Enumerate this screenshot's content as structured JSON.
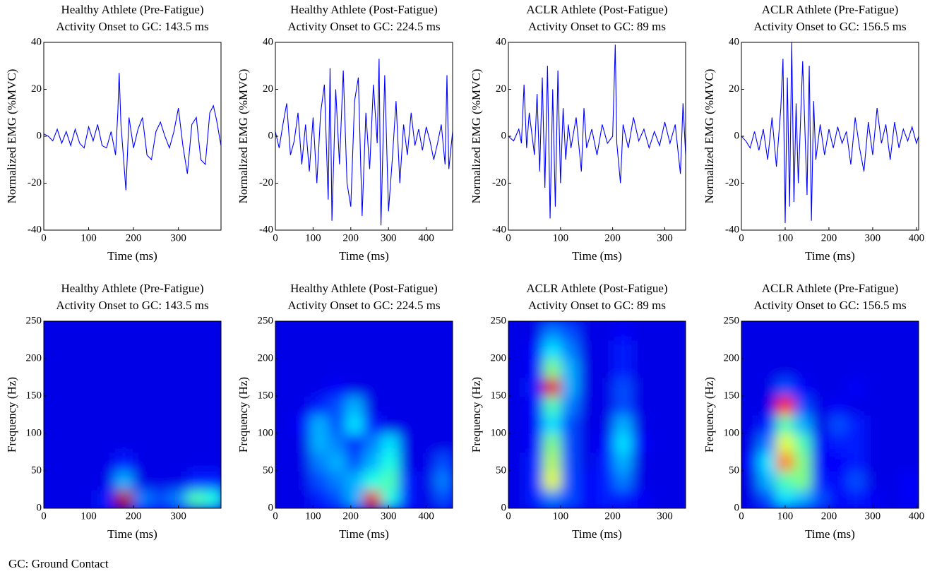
{
  "chart_data": [
    {
      "type": "line",
      "title": "Healthy Athlete (Pre-Fatigue)",
      "subtitle": "Activity Onset to GC: 143.5 ms",
      "xlabel": "Time (ms)",
      "ylabel": "Normalized EMG (%MVC)",
      "xlim": [
        0,
        395
      ],
      "xticks": [
        0,
        100,
        200,
        300
      ],
      "ylim": [
        -40,
        40
      ],
      "yticks": [
        -40,
        -20,
        0,
        20,
        40
      ],
      "color": "#0000ff",
      "x": [
        0,
        10,
        20,
        30,
        40,
        50,
        60,
        70,
        80,
        90,
        100,
        110,
        120,
        130,
        140,
        150,
        160,
        165,
        168,
        172,
        178,
        183,
        190,
        200,
        210,
        220,
        230,
        240,
        250,
        260,
        270,
        280,
        290,
        300,
        310,
        320,
        330,
        340,
        350,
        360,
        370,
        378,
        385,
        395
      ],
      "values": [
        1,
        0,
        -2,
        3,
        -3,
        2,
        -4,
        3,
        -3,
        -5,
        4,
        -2,
        5,
        -4,
        -5,
        2,
        -8,
        10,
        27,
        5,
        -10,
        -23,
        8,
        -5,
        3,
        8,
        -8,
        -10,
        2,
        6,
        0,
        -5,
        2,
        12,
        -4,
        -16,
        5,
        8,
        -10,
        -12,
        10,
        13,
        7,
        -4
      ]
    },
    {
      "type": "line",
      "title": "Healthy Athlete (Post-Fatigue)",
      "subtitle": "Activity Onset to GC: 224.5 ms",
      "xlabel": "Time (ms)",
      "ylabel": "Normalized EMG (%MVC)",
      "xlim": [
        0,
        470
      ],
      "xticks": [
        0,
        100,
        200,
        300,
        400
      ],
      "ylim": [
        -40,
        40
      ],
      "yticks": [
        -40,
        -20,
        0,
        20,
        40
      ],
      "color": "#0000ff",
      "x": [
        0,
        10,
        20,
        30,
        40,
        50,
        60,
        70,
        80,
        90,
        100,
        110,
        120,
        130,
        140,
        145,
        150,
        160,
        170,
        180,
        190,
        200,
        210,
        220,
        230,
        240,
        250,
        260,
        270,
        275,
        280,
        290,
        300,
        310,
        320,
        330,
        340,
        350,
        360,
        370,
        380,
        390,
        400,
        410,
        420,
        430,
        440,
        450,
        455,
        460,
        470
      ],
      "values": [
        2,
        -5,
        5,
        14,
        -8,
        -2,
        10,
        -12,
        5,
        -15,
        8,
        -20,
        10,
        22,
        -27,
        29,
        -36,
        20,
        -12,
        28,
        -20,
        -30,
        15,
        25,
        -34,
        10,
        -14,
        22,
        -3,
        33,
        -38,
        26,
        -32,
        -10,
        15,
        -20,
        5,
        -8,
        10,
        -4,
        3,
        -6,
        4,
        -2,
        -10,
        -3,
        5,
        -12,
        26,
        -14,
        2
      ]
    },
    {
      "type": "line",
      "title": "ACLR Athlete (Post-Fatigue)",
      "subtitle": "Activity Onset to GC: 89 ms",
      "xlabel": "Time (ms)",
      "ylabel": "Normalized EMG (%MVC)",
      "xlim": [
        0,
        340
      ],
      "xticks": [
        0,
        100,
        200,
        300
      ],
      "ylim": [
        -40,
        40
      ],
      "yticks": [
        -40,
        -20,
        0,
        20,
        40
      ],
      "color": "#0000ff",
      "x": [
        0,
        10,
        20,
        25,
        30,
        35,
        40,
        50,
        55,
        60,
        65,
        70,
        75,
        80,
        85,
        90,
        95,
        100,
        105,
        110,
        115,
        120,
        130,
        140,
        145,
        150,
        160,
        170,
        180,
        190,
        200,
        205,
        208,
        215,
        220,
        230,
        240,
        250,
        260,
        270,
        280,
        290,
        300,
        310,
        320,
        330,
        335,
        340
      ],
      "values": [
        0,
        -2,
        3,
        -3,
        22,
        -5,
        10,
        -8,
        18,
        -15,
        25,
        -22,
        30,
        -35,
        20,
        -30,
        28,
        -20,
        12,
        -10,
        5,
        -5,
        8,
        -15,
        12,
        -5,
        3,
        -8,
        5,
        -3,
        0,
        39,
        -3,
        -20,
        5,
        -5,
        8,
        -2,
        3,
        -5,
        2,
        -4,
        6,
        -3,
        5,
        -16,
        14,
        -8
      ]
    },
    {
      "type": "line",
      "title": "ACLR Athlete (Pre-Fatigue)",
      "subtitle": "Activity Onset to GC: 156.5 ms",
      "xlabel": "Time (ms)",
      "ylabel": "Normalized EMG (%MVC)",
      "xlim": [
        0,
        405
      ],
      "xticks": [
        0,
        100,
        200,
        300,
        400
      ],
      "ylim": [
        -40,
        40
      ],
      "yticks": [
        -40,
        -20,
        0,
        20,
        40
      ],
      "color": "#0000ff",
      "x": [
        0,
        10,
        20,
        30,
        40,
        50,
        60,
        70,
        80,
        90,
        95,
        100,
        105,
        110,
        115,
        120,
        125,
        130,
        140,
        150,
        155,
        160,
        165,
        170,
        180,
        190,
        200,
        210,
        220,
        230,
        240,
        250,
        260,
        270,
        280,
        290,
        300,
        310,
        320,
        330,
        340,
        350,
        360,
        370,
        380,
        390,
        400,
        405
      ],
      "values": [
        0,
        -2,
        -5,
        2,
        -6,
        3,
        -10,
        8,
        -13,
        12,
        33,
        -37,
        25,
        -30,
        40,
        -28,
        14,
        -20,
        32,
        -25,
        30,
        -36,
        15,
        -10,
        5,
        -8,
        3,
        -5,
        4,
        -3,
        2,
        -12,
        8,
        -5,
        -15,
        6,
        -8,
        12,
        -3,
        5,
        -10,
        6,
        -5,
        3,
        -2,
        4,
        -3,
        0
      ]
    },
    {
      "type": "heatmap",
      "title": "Healthy Athlete (Pre-Fatigue)",
      "subtitle": "Activity Onset to GC: 143.5 ms",
      "xlabel": "Time (ms)",
      "ylabel": "Frequency (Hz)",
      "colormap": "jet",
      "xlim": [
        0,
        395
      ],
      "xticks": [
        0,
        100,
        200,
        300
      ],
      "ylim": [
        0,
        250
      ],
      "yticks": [
        0,
        50,
        100,
        150,
        200,
        250
      ],
      "x": [
        20,
        60,
        100,
        140,
        180,
        220,
        260,
        300,
        340,
        380
      ],
      "y": [
        12.5,
        37.5,
        62.5,
        87.5,
        112.5,
        137.5,
        162.5,
        187.5,
        212.5,
        237.5
      ],
      "z": [
        [
          0.1,
          0.1,
          0.1,
          0.15,
          0.95,
          0.25,
          0.2,
          0.25,
          0.45,
          0.4
        ],
        [
          0.1,
          0.1,
          0.1,
          0.1,
          0.3,
          0.1,
          0.1,
          0.1,
          0.15,
          0.15
        ],
        [
          0.1,
          0.1,
          0.1,
          0.1,
          0.15,
          0.1,
          0.1,
          0.1,
          0.1,
          0.1
        ],
        [
          0.1,
          0.1,
          0.1,
          0.1,
          0.1,
          0.1,
          0.1,
          0.1,
          0.1,
          0.1
        ],
        [
          0.1,
          0.1,
          0.1,
          0.1,
          0.1,
          0.1,
          0.1,
          0.1,
          0.1,
          0.1
        ],
        [
          0.1,
          0.1,
          0.1,
          0.1,
          0.1,
          0.1,
          0.1,
          0.1,
          0.1,
          0.1
        ],
        [
          0.1,
          0.1,
          0.1,
          0.1,
          0.1,
          0.1,
          0.1,
          0.1,
          0.1,
          0.1
        ],
        [
          0.1,
          0.1,
          0.1,
          0.1,
          0.1,
          0.1,
          0.1,
          0.1,
          0.1,
          0.1
        ],
        [
          0.1,
          0.1,
          0.1,
          0.1,
          0.1,
          0.1,
          0.1,
          0.1,
          0.1,
          0.1
        ],
        [
          0.1,
          0.1,
          0.1,
          0.1,
          0.1,
          0.1,
          0.1,
          0.1,
          0.1,
          0.1
        ]
      ]
    },
    {
      "type": "heatmap",
      "title": "Healthy Athlete (Post-Fatigue)",
      "subtitle": "Activity Onset to GC: 224.5 ms",
      "xlabel": "Time (ms)",
      "ylabel": "Frequency (Hz)",
      "colormap": "jet",
      "xlim": [
        0,
        470
      ],
      "xticks": [
        0,
        100,
        200,
        300,
        400
      ],
      "ylim": [
        0,
        250
      ],
      "yticks": [
        0,
        50,
        100,
        150,
        200,
        250
      ],
      "x": [
        24,
        71,
        118,
        165,
        212,
        259,
        306,
        353,
        400,
        447
      ],
      "y": [
        12.5,
        37.5,
        62.5,
        87.5,
        112.5,
        137.5,
        162.5,
        187.5,
        212.5,
        237.5
      ],
      "z": [
        [
          0.1,
          0.1,
          0.15,
          0.2,
          0.3,
          0.9,
          0.4,
          0.15,
          0.1,
          0.2
        ],
        [
          0.1,
          0.1,
          0.2,
          0.25,
          0.3,
          0.4,
          0.45,
          0.15,
          0.1,
          0.25
        ],
        [
          0.1,
          0.1,
          0.25,
          0.3,
          0.2,
          0.3,
          0.4,
          0.1,
          0.1,
          0.2
        ],
        [
          0.1,
          0.1,
          0.3,
          0.25,
          0.15,
          0.25,
          0.35,
          0.1,
          0.1,
          0.1
        ],
        [
          0.1,
          0.12,
          0.3,
          0.2,
          0.35,
          0.15,
          0.1,
          0.1,
          0.1,
          0.1
        ],
        [
          0.1,
          0.1,
          0.15,
          0.2,
          0.3,
          0.1,
          0.1,
          0.1,
          0.1,
          0.1
        ],
        [
          0.1,
          0.1,
          0.1,
          0.12,
          0.1,
          0.1,
          0.1,
          0.1,
          0.1,
          0.1
        ],
        [
          0.1,
          0.1,
          0.1,
          0.1,
          0.1,
          0.1,
          0.1,
          0.1,
          0.1,
          0.1
        ],
        [
          0.1,
          0.1,
          0.1,
          0.1,
          0.1,
          0.1,
          0.1,
          0.1,
          0.1,
          0.1
        ],
        [
          0.1,
          0.1,
          0.1,
          0.1,
          0.1,
          0.1,
          0.1,
          0.1,
          0.1,
          0.1
        ]
      ]
    },
    {
      "type": "heatmap",
      "title": "ACLR Athlete (Post-Fatigue)",
      "subtitle": "Activity Onset to GC: 89 ms",
      "xlabel": "Time (ms)",
      "ylabel": "Frequency (Hz)",
      "colormap": "jet",
      "xlim": [
        0,
        340
      ],
      "xticks": [
        0,
        100,
        200,
        300
      ],
      "ylim": [
        0,
        250
      ],
      "yticks": [
        0,
        50,
        100,
        150,
        200,
        250
      ],
      "x": [
        17,
        51,
        85,
        119,
        153,
        187,
        221,
        255,
        289,
        323
      ],
      "y": [
        12.5,
        37.5,
        62.5,
        87.5,
        112.5,
        137.5,
        162.5,
        187.5,
        212.5,
        237.5
      ],
      "z": [
        [
          0.1,
          0.15,
          0.25,
          0.2,
          0.12,
          0.15,
          0.15,
          0.12,
          0.1,
          0.1
        ],
        [
          0.1,
          0.15,
          0.6,
          0.2,
          0.12,
          0.15,
          0.25,
          0.1,
          0.1,
          0.1
        ],
        [
          0.1,
          0.15,
          0.55,
          0.2,
          0.1,
          0.15,
          0.3,
          0.1,
          0.1,
          0.1
        ],
        [
          0.1,
          0.12,
          0.5,
          0.2,
          0.1,
          0.12,
          0.35,
          0.12,
          0.1,
          0.1
        ],
        [
          0.1,
          0.12,
          0.35,
          0.2,
          0.1,
          0.1,
          0.3,
          0.1,
          0.1,
          0.1
        ],
        [
          0.1,
          0.12,
          0.45,
          0.25,
          0.1,
          0.1,
          0.2,
          0.1,
          0.1,
          0.1
        ],
        [
          0.1,
          0.15,
          0.9,
          0.3,
          0.1,
          0.1,
          0.2,
          0.1,
          0.1,
          0.1
        ],
        [
          0.1,
          0.12,
          0.5,
          0.3,
          0.1,
          0.1,
          0.15,
          0.1,
          0.1,
          0.1
        ],
        [
          0.1,
          0.12,
          0.35,
          0.25,
          0.1,
          0.1,
          0.15,
          0.1,
          0.1,
          0.1
        ],
        [
          0.1,
          0.1,
          0.25,
          0.2,
          0.1,
          0.1,
          0.12,
          0.1,
          0.1,
          0.1
        ]
      ]
    },
    {
      "type": "heatmap",
      "title": "ACLR Athlete (Pre-Fatigue)",
      "subtitle": "Activity Onset to GC: 156.5 ms",
      "xlabel": "Time (ms)",
      "ylabel": "Frequency (Hz)",
      "colormap": "jet",
      "xlim": [
        0,
        405
      ],
      "xticks": [
        0,
        100,
        200,
        300,
        400
      ],
      "ylim": [
        0,
        250
      ],
      "yticks": [
        0,
        50,
        100,
        150,
        200,
        250
      ],
      "x": [
        20,
        61,
        101,
        142,
        182,
        223,
        263,
        304,
        344,
        385
      ],
      "y": [
        12.5,
        37.5,
        62.5,
        87.5,
        112.5,
        137.5,
        162.5,
        187.5,
        212.5,
        237.5
      ],
      "z": [
        [
          0.1,
          0.2,
          0.35,
          0.3,
          0.2,
          0.12,
          0.15,
          0.12,
          0.1,
          0.12
        ],
        [
          0.1,
          0.3,
          0.45,
          0.5,
          0.15,
          0.12,
          0.2,
          0.1,
          0.1,
          0.12
        ],
        [
          0.12,
          0.35,
          0.75,
          0.5,
          0.12,
          0.12,
          0.15,
          0.1,
          0.1,
          0.1
        ],
        [
          0.1,
          0.25,
          0.6,
          0.45,
          0.12,
          0.15,
          0.15,
          0.1,
          0.1,
          0.1
        ],
        [
          0.1,
          0.15,
          0.45,
          0.3,
          0.1,
          0.2,
          0.15,
          0.1,
          0.1,
          0.1
        ],
        [
          0.1,
          0.1,
          0.85,
          0.2,
          0.1,
          0.12,
          0.1,
          0.1,
          0.1,
          0.1
        ],
        [
          0.1,
          0.1,
          0.2,
          0.12,
          0.1,
          0.1,
          0.12,
          0.1,
          0.1,
          0.1
        ],
        [
          0.1,
          0.1,
          0.1,
          0.1,
          0.1,
          0.1,
          0.1,
          0.1,
          0.1,
          0.1
        ],
        [
          0.1,
          0.1,
          0.1,
          0.1,
          0.1,
          0.1,
          0.1,
          0.1,
          0.1,
          0.1
        ],
        [
          0.1,
          0.1,
          0.1,
          0.1,
          0.1,
          0.1,
          0.1,
          0.1,
          0.1,
          0.1
        ]
      ]
    }
  ],
  "note": "GC: Ground Contact"
}
